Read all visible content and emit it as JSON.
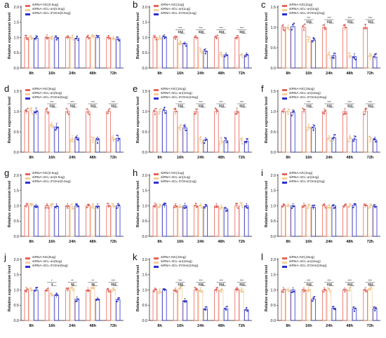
{
  "figure": {
    "colors": {
      "nc": "#e8645a",
      "un": "#f5cf9a",
      "ome": "#2b2fd1"
    },
    "ylabel": "Relative expression level",
    "x_tick_labels": [
      "8h",
      "16h",
      "24h",
      "48h",
      "72h"
    ]
  },
  "chart_data": [
    {
      "panel": "a",
      "type": "bar",
      "ylabel": "Relative expression level",
      "ylim": [
        0,
        2.0
      ],
      "yticks": [
        "0.0",
        "0.5",
        "1.0",
        "1.5",
        "2.0"
      ],
      "categories": [
        "8h",
        "16h",
        "24h",
        "48h",
        "72h"
      ],
      "legend_position": "top-left",
      "series": [
        {
          "name": "siRNA-NC(0.5ug)",
          "values": [
            1.0,
            1.0,
            1.0,
            1.0,
            1.0
          ]
        },
        {
          "name": "siRNA-4CL-un(0.5ug)",
          "values": [
            1.0,
            0.98,
            1.0,
            1.02,
            0.98
          ]
        },
        {
          "name": "siRNA-4CL-2'Ome(0.5ug)",
          "values": [
            0.98,
            1.0,
            0.98,
            1.0,
            0.95
          ]
        }
      ],
      "significance": [
        {
          "upper": "",
          "lower": ""
        },
        {
          "upper": "",
          "lower": ""
        },
        {
          "upper": "",
          "lower": ""
        },
        {
          "upper": "",
          "lower": ""
        },
        {
          "upper": "",
          "lower": ""
        }
      ]
    },
    {
      "panel": "b",
      "type": "bar",
      "ylabel": "Relative expression level",
      "ylim": [
        0,
        2.0
      ],
      "yticks": [
        "0.0",
        "0.5",
        "1.0",
        "1.5",
        "2.0"
      ],
      "categories": [
        "8h",
        "16h",
        "24h",
        "48h",
        "72h"
      ],
      "legend_position": "top-left",
      "series": [
        {
          "name": "siRNA-NC(1ug)",
          "values": [
            1.0,
            1.0,
            1.0,
            1.0,
            1.0
          ]
        },
        {
          "name": "siRNA-4CL-un(1ug)",
          "values": [
            1.0,
            0.82,
            0.58,
            0.45,
            0.42
          ]
        },
        {
          "name": "siRNA-4CL-2'Ome(1ug)",
          "values": [
            1.02,
            0.8,
            0.55,
            0.43,
            0.42
          ]
        }
      ],
      "significance": [
        {
          "upper": "",
          "lower": ""
        },
        {
          "upper": "***",
          "lower": "$$$"
        },
        {
          "upper": "***",
          "lower": "$$$"
        },
        {
          "upper": "***",
          "lower": "$$$"
        },
        {
          "upper": "***",
          "lower": "$$$"
        }
      ]
    },
    {
      "panel": "c",
      "type": "bar",
      "ylabel": "Relative expression level",
      "ylim": [
        0,
        1.5
      ],
      "yticks": [
        "0.0",
        "0.5",
        "1.0",
        "1.5"
      ],
      "categories": [
        "8h",
        "16h",
        "24h",
        "48h",
        "72h"
      ],
      "legend_position": "top-left",
      "series": [
        {
          "name": "siRNA-NC(2ug)",
          "values": [
            1.0,
            1.0,
            1.0,
            1.0,
            1.0
          ]
        },
        {
          "name": "siRNA-4CL-un(2ug)",
          "values": [
            1.0,
            0.7,
            0.32,
            0.3,
            0.28
          ]
        },
        {
          "name": "siRNA-4CL-2'Ome(2ug)",
          "values": [
            1.02,
            0.68,
            0.3,
            0.28,
            0.27
          ]
        }
      ],
      "significance": [
        {
          "upper": "",
          "lower": ""
        },
        {
          "upper": "***",
          "lower": "$$$"
        },
        {
          "upper": "***",
          "lower": "$$$"
        },
        {
          "upper": "***",
          "lower": "$$$"
        },
        {
          "upper": "***",
          "lower": "$$$"
        }
      ]
    },
    {
      "panel": "d",
      "type": "bar",
      "ylabel": "Relative expression level",
      "ylim": [
        0,
        1.5
      ],
      "yticks": [
        "0.0",
        "0.5",
        "1.0",
        "1.5"
      ],
      "categories": [
        "8h",
        "16h",
        "24h",
        "48h",
        "72h"
      ],
      "legend_position": "top-left",
      "series": [
        {
          "name": "siRNA-NC(5ug)",
          "values": [
            1.0,
            1.0,
            1.0,
            1.0,
            1.0
          ]
        },
        {
          "name": "siRNA-4CL-un(5ug)",
          "values": [
            1.02,
            0.65,
            0.33,
            0.3,
            0.33
          ]
        },
        {
          "name": "siRNA-4CL-2'Ome(5ug)",
          "values": [
            1.0,
            0.62,
            0.35,
            0.3,
            0.34
          ]
        }
      ],
      "significance": [
        {
          "upper": "",
          "lower": ""
        },
        {
          "upper": "***",
          "lower": "$$$"
        },
        {
          "upper": "***",
          "lower": "$$$"
        },
        {
          "upper": "***",
          "lower": "$$$"
        },
        {
          "upper": "***",
          "lower": "$$$"
        }
      ]
    },
    {
      "panel": "e",
      "type": "bar",
      "ylabel": "Relative expression level",
      "ylim": [
        0,
        1.5
      ],
      "yticks": [
        "0.0",
        "0.5",
        "1.0",
        "1.5"
      ],
      "categories": [
        "8h",
        "16h",
        "24h",
        "48h",
        "72h"
      ],
      "legend_position": "top-left",
      "series": [
        {
          "name": "siRNA-NC(10ug)",
          "values": [
            1.0,
            1.0,
            1.0,
            1.0,
            1.0
          ]
        },
        {
          "name": "siRNA-4CL-un(10ug)",
          "values": [
            1.0,
            0.62,
            0.3,
            0.28,
            0.28
          ]
        },
        {
          "name": "siRNA-4CL-2'Ome(10ug)",
          "values": [
            1.02,
            0.6,
            0.3,
            0.28,
            0.27
          ]
        }
      ],
      "significance": [
        {
          "upper": "",
          "lower": ""
        },
        {
          "upper": "***",
          "lower": "$$$"
        },
        {
          "upper": "***",
          "lower": "$$$"
        },
        {
          "upper": "***",
          "lower": "$$$"
        },
        {
          "upper": "***",
          "lower": "$$$"
        }
      ]
    },
    {
      "panel": "f",
      "type": "bar",
      "ylabel": "Relative expression level",
      "ylim": [
        0,
        1.5
      ],
      "yticks": [
        "0.0",
        "0.5",
        "1.0",
        "1.5"
      ],
      "categories": [
        "8h",
        "16h",
        "24h",
        "48h",
        "72h"
      ],
      "legend_position": "top-left",
      "series": [
        {
          "name": "siRNA-NC(15ug)",
          "values": [
            1.0,
            1.0,
            1.0,
            1.0,
            1.0
          ]
        },
        {
          "name": "siRNA-4CL-un(15ug)",
          "values": [
            1.0,
            0.62,
            0.35,
            0.33,
            0.32
          ]
        },
        {
          "name": "siRNA-4CL-2'Ome(15ug)",
          "values": [
            0.98,
            0.6,
            0.35,
            0.32,
            0.3
          ]
        }
      ],
      "significance": [
        {
          "upper": "",
          "lower": ""
        },
        {
          "upper": "***",
          "lower": "$$$"
        },
        {
          "upper": "***",
          "lower": "$$$"
        },
        {
          "upper": "***",
          "lower": "$$$"
        },
        {
          "upper": "***",
          "lower": "$$$"
        }
      ]
    },
    {
      "panel": "g",
      "type": "bar",
      "ylabel": "Relative expression level",
      "ylim": [
        0,
        2.0
      ],
      "yticks": [
        "0.0",
        "0.5",
        "1.0",
        "1.5",
        "2.0"
      ],
      "categories": [
        "8h",
        "16h",
        "24h",
        "48h",
        "72h"
      ],
      "legend_position": "top-left",
      "series": [
        {
          "name": "siRNA-NC(0.5ug)",
          "values": [
            1.0,
            1.0,
            1.0,
            1.0,
            1.0
          ]
        },
        {
          "name": "siRNA-4CL-un(0.5ug)",
          "values": [
            1.02,
            1.0,
            0.98,
            1.0,
            1.0
          ]
        },
        {
          "name": "siRNA-4CL-2'Ome(0.5ug)",
          "values": [
            1.0,
            0.98,
            1.0,
            0.98,
            1.0
          ]
        }
      ],
      "significance": [
        {
          "upper": "",
          "lower": ""
        },
        {
          "upper": "",
          "lower": ""
        },
        {
          "upper": "",
          "lower": ""
        },
        {
          "upper": "",
          "lower": ""
        },
        {
          "upper": "",
          "lower": ""
        }
      ]
    },
    {
      "panel": "h",
      "type": "bar",
      "ylabel": "Relative expression level",
      "ylim": [
        0,
        2.0
      ],
      "yticks": [
        "0.0",
        "0.5",
        "1.0",
        "1.5",
        "2.0"
      ],
      "categories": [
        "8h",
        "16h",
        "24h",
        "48h",
        "72h"
      ],
      "legend_position": "top-left",
      "series": [
        {
          "name": "siRNA-NC(1ug)",
          "values": [
            1.0,
            1.0,
            1.0,
            1.0,
            1.0
          ]
        },
        {
          "name": "siRNA-4CL-un(1ug)",
          "values": [
            1.0,
            0.98,
            1.0,
            0.95,
            1.02
          ]
        },
        {
          "name": "siRNA-4CL-2'Ome(1ug)",
          "values": [
            1.02,
            1.0,
            0.98,
            0.9,
            1.0
          ]
        }
      ],
      "significance": [
        {
          "upper": "",
          "lower": ""
        },
        {
          "upper": "",
          "lower": ""
        },
        {
          "upper": "",
          "lower": ""
        },
        {
          "upper": "",
          "lower": ""
        },
        {
          "upper": "",
          "lower": ""
        }
      ]
    },
    {
      "panel": "i",
      "type": "bar",
      "ylabel": "Relative expression level",
      "ylim": [
        0,
        2.0
      ],
      "yticks": [
        "0.0",
        "0.5",
        "1.0",
        "1.5",
        "2.0"
      ],
      "categories": [
        "8h",
        "16h",
        "24h",
        "48h",
        "72h"
      ],
      "legend_position": "top-left",
      "series": [
        {
          "name": "siRNA-NC(2ug)",
          "values": [
            1.0,
            1.0,
            1.0,
            1.0,
            1.0
          ]
        },
        {
          "name": "siRNA-4CL-un(2ug)",
          "values": [
            1.0,
            0.98,
            1.0,
            1.0,
            1.0
          ]
        },
        {
          "name": "siRNA-4CL-2'Ome(2ug)",
          "values": [
            1.0,
            0.95,
            1.0,
            1.02,
            0.98
          ]
        }
      ],
      "significance": [
        {
          "upper": "",
          "lower": ""
        },
        {
          "upper": "",
          "lower": ""
        },
        {
          "upper": "",
          "lower": ""
        },
        {
          "upper": "",
          "lower": ""
        },
        {
          "upper": "",
          "lower": ""
        }
      ]
    },
    {
      "panel": "j",
      "type": "bar",
      "ylabel": "Relative expression level",
      "ylim": [
        0,
        2.0
      ],
      "yticks": [
        "0.0",
        "0.5",
        "1.0",
        "1.5",
        "2.0"
      ],
      "categories": [
        "8h",
        "16h",
        "24h",
        "48h",
        "72h"
      ],
      "legend_position": "top-left",
      "series": [
        {
          "name": "siRNA-NC(5ug)",
          "values": [
            1.0,
            1.0,
            1.0,
            1.0,
            1.0
          ]
        },
        {
          "name": "siRNA-4CL-un(5ug)",
          "values": [
            1.0,
            0.85,
            1.05,
            1.1,
            1.02
          ]
        },
        {
          "name": "siRNA-4CL-2'Ome(5ug)",
          "values": [
            1.0,
            0.82,
            0.7,
            0.7,
            0.68
          ]
        }
      ],
      "significance": [
        {
          "upper": "",
          "lower": ""
        },
        {
          "upper": "*",
          "lower": "$"
        },
        {
          "upper": "**",
          "lower": "$$"
        },
        {
          "upper": "**",
          "lower": "$$"
        },
        {
          "upper": "***",
          "lower": "$$$"
        }
      ]
    },
    {
      "panel": "k",
      "type": "bar",
      "ylabel": "Relative expression level",
      "ylim": [
        0,
        2.0
      ],
      "yticks": [
        "0.0",
        "0.5",
        "1.0",
        "1.5",
        "2.0"
      ],
      "categories": [
        "8h",
        "16h",
        "24h",
        "48h",
        "72h"
      ],
      "legend_position": "top-left",
      "series": [
        {
          "name": "siRNA-NC(10ug)",
          "values": [
            1.0,
            1.0,
            1.0,
            1.0,
            1.0
          ]
        },
        {
          "name": "siRNA-4CL-un(10ug)",
          "values": [
            0.95,
            1.05,
            1.0,
            1.0,
            1.02
          ]
        },
        {
          "name": "siRNA-4CL-2'Ome(10ug)",
          "values": [
            1.0,
            0.65,
            0.38,
            0.38,
            0.35
          ]
        }
      ],
      "significance": [
        {
          "upper": "",
          "lower": ""
        },
        {
          "upper": "***",
          "lower": "$$$"
        },
        {
          "upper": "***",
          "lower": "$$$"
        },
        {
          "upper": "***",
          "lower": "$$$"
        },
        {
          "upper": "***",
          "lower": "$$$"
        }
      ]
    },
    {
      "panel": "l",
      "type": "bar",
      "ylabel": "Relative expression level",
      "ylim": [
        0,
        2.0
      ],
      "yticks": [
        "0.0",
        "0.5",
        "1.0",
        "1.5",
        "2.0"
      ],
      "categories": [
        "8h",
        "16h",
        "24h",
        "48h",
        "72h"
      ],
      "legend_position": "top-left",
      "series": [
        {
          "name": "siRNA-NC(15ug)",
          "values": [
            1.0,
            1.0,
            1.0,
            1.0,
            1.0
          ]
        },
        {
          "name": "siRNA-4CL-un(15ug)",
          "values": [
            1.0,
            1.02,
            1.0,
            1.0,
            1.05
          ]
        },
        {
          "name": "siRNA-4CL-2'Ome(15ug)",
          "values": [
            1.0,
            0.7,
            0.4,
            0.38,
            0.38
          ]
        }
      ],
      "significance": [
        {
          "upper": "",
          "lower": ""
        },
        {
          "upper": "***",
          "lower": "$$$"
        },
        {
          "upper": "***",
          "lower": "$$$"
        },
        {
          "upper": "***",
          "lower": "$$$"
        },
        {
          "upper": "***",
          "lower": "$$$"
        }
      ]
    }
  ]
}
